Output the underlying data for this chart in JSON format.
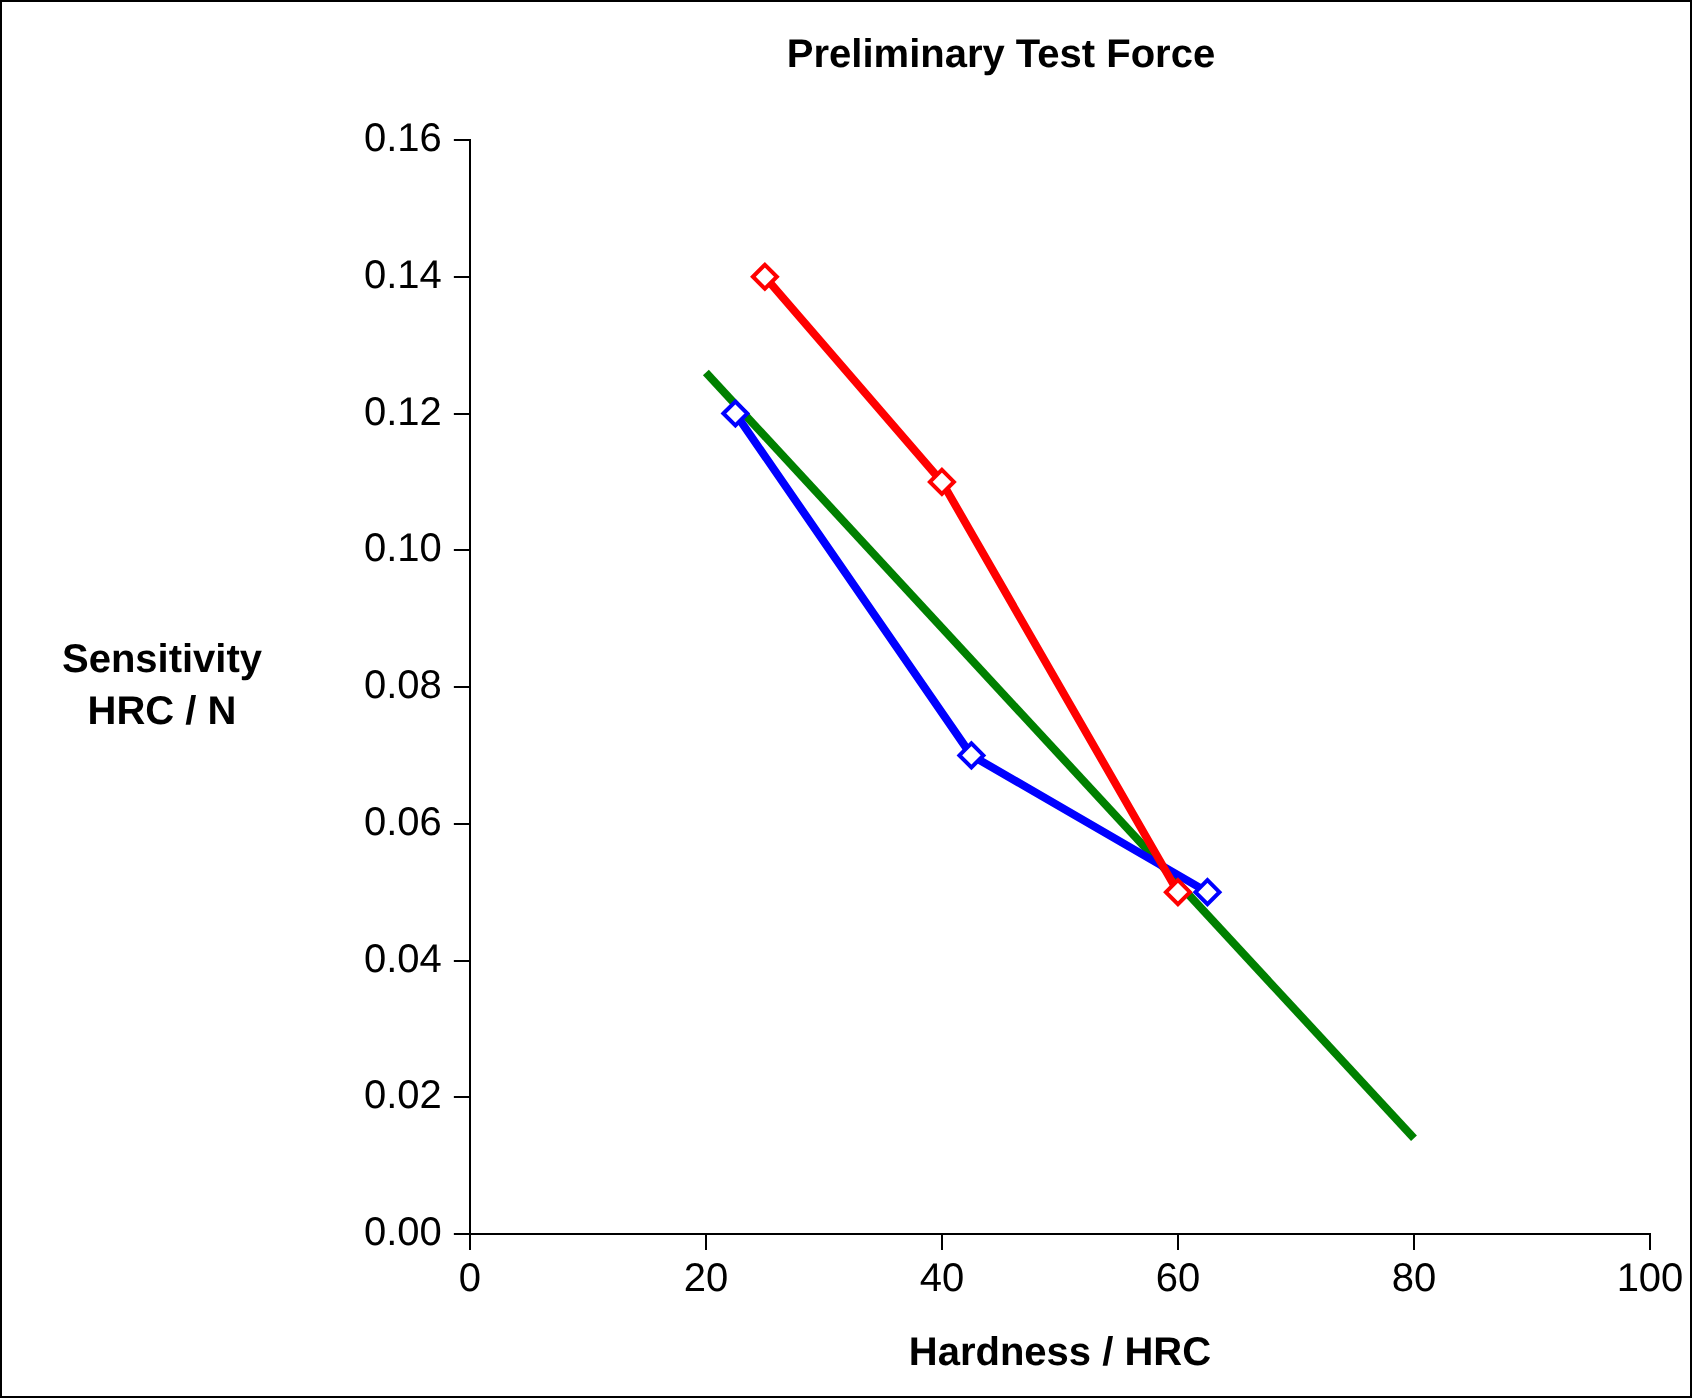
{
  "chart_data": {
    "type": "line",
    "title": "Preliminary Test Force",
    "xlabel": "Hardness / HRC",
    "ylabel": "Sensitivity\nHRC / N",
    "xlim": [
      0,
      100
    ],
    "xticks": [
      0,
      20,
      40,
      60,
      80,
      100
    ],
    "ylim": [
      0,
      0.16
    ],
    "yticks": [
      {
        "value": 0,
        "label": "0.00"
      },
      {
        "value": 0.02,
        "label": "0.02"
      },
      {
        "value": 0.04,
        "label": "0.04"
      },
      {
        "value": 0.06,
        "label": "0.06"
      },
      {
        "value": 0.08,
        "label": "0.08"
      },
      {
        "value": 0.1,
        "label": "0.10"
      },
      {
        "value": 0.12,
        "label": "0.12"
      },
      {
        "value": 0.14,
        "label": "0.14"
      },
      {
        "value": 0.16,
        "label": "0.16"
      }
    ],
    "grid": false,
    "legend": false,
    "series": [
      {
        "type": "line",
        "color": "#ff0000",
        "marker": "diamond",
        "x": [
          25,
          40,
          60
        ],
        "values": [
          0.14,
          0.11,
          0.05
        ]
      },
      {
        "type": "line",
        "color": "#0000ff",
        "marker": "diamond",
        "x": [
          22.5,
          42.5,
          62.5
        ],
        "values": [
          0.12,
          0.07,
          0.05
        ]
      },
      {
        "type": "line",
        "color": "#008000",
        "marker": "none",
        "x": [
          20,
          80
        ],
        "values": [
          0.126,
          0.014
        ]
      }
    ]
  }
}
